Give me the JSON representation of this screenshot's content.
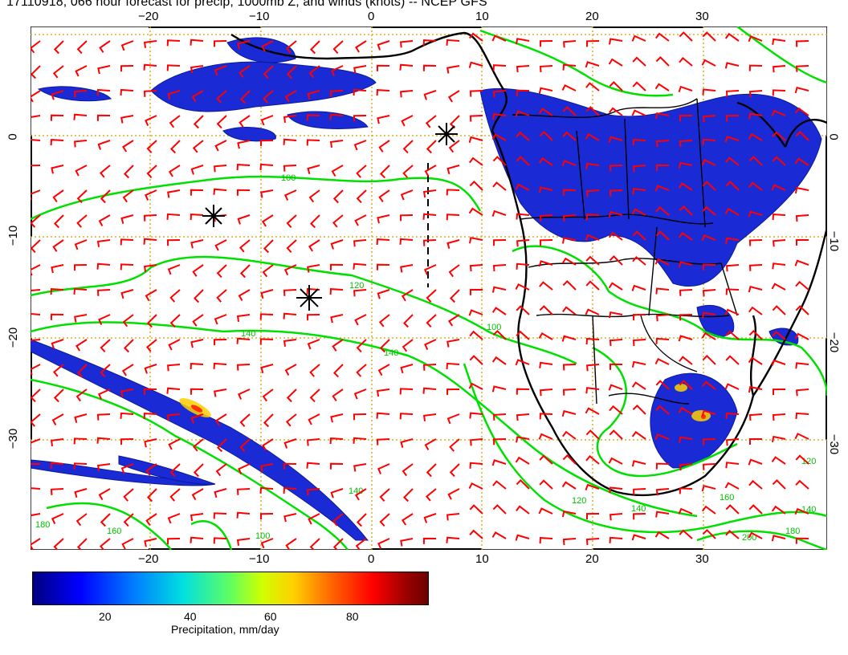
{
  "title": "17110918, 066 hour forecast for precip, 1000mb Z, and winds (knots) -- NCEP GFS",
  "stamp": "17110918",
  "lon_ticks": [
    "−20",
    "−10",
    "0",
    "10",
    "20",
    "30"
  ],
  "lat_ticks": [
    "0",
    "−10",
    "−20",
    "−30"
  ],
  "contour_labels": [
    "100",
    "120",
    "140",
    "160",
    "180",
    "200"
  ],
  "colorbar": {
    "title": "Precipitation, mm/day",
    "labels": [
      "20",
      "40",
      "60",
      "80"
    ],
    "range": [
      0,
      100
    ],
    "colors": [
      "#00007f",
      "#0000ff",
      "#0080ff",
      "#00e0e0",
      "#60ff60",
      "#d0ff00",
      "#ffd000",
      "#ff6000",
      "#ff0000",
      "#6b0000"
    ]
  },
  "map": {
    "lon_range": [
      -30,
      40
    ],
    "lat_range": [
      -40,
      10
    ],
    "grid": true,
    "wind_color": "#ff0000",
    "contour_color": "#00e000",
    "precip_color": "#1a2bd6"
  }
}
